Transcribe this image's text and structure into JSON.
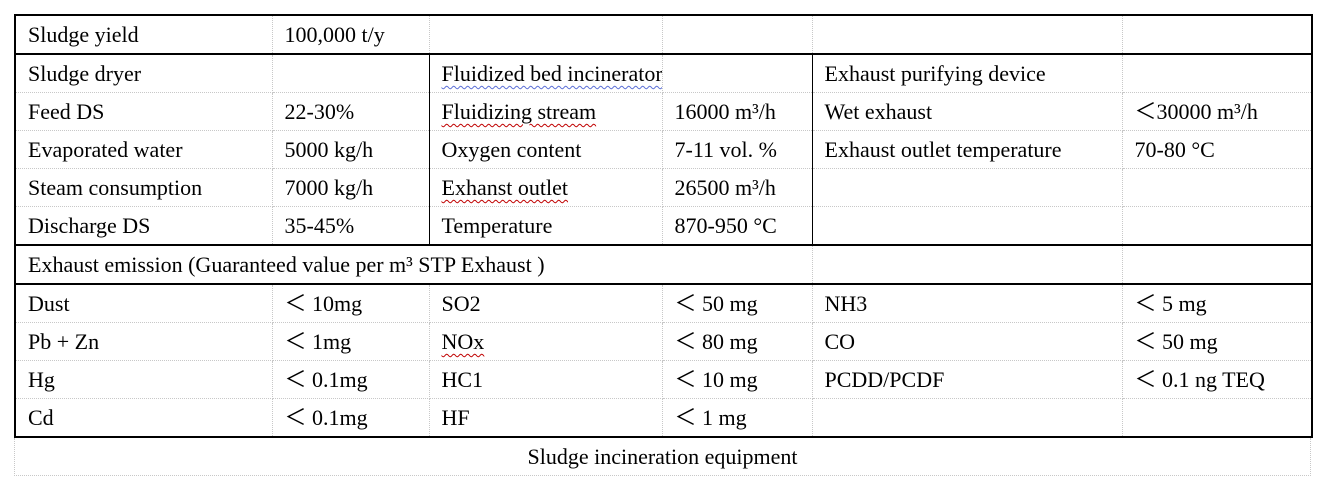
{
  "table": {
    "row1": {
      "label": "Sludge yield",
      "value": "100,000 t/y"
    },
    "headers": {
      "dryer": "Sludge dryer",
      "incinerator": "Fluidized bed incinerator",
      "purifier": "Exhaust purifying device"
    },
    "equipment_rows": [
      {
        "dryer_label": "Feed DS",
        "dryer_value": "22-30%",
        "inc_label": "Fluidizing stream",
        "inc_value": "16000 m³/h",
        "pur_label": "Wet exhaust",
        "pur_value": "＜30000 m³/h"
      },
      {
        "dryer_label": "Evaporated water",
        "dryer_value": "5000 kg/h",
        "inc_label": "Oxygen content",
        "inc_value": "7-11 vol. %",
        "pur_label": "Exhaust outlet temperature",
        "pur_value": "70-80 °C"
      },
      {
        "dryer_label": "Steam consumption",
        "dryer_value": "7000 kg/h",
        "inc_label": "Exhanst outlet",
        "inc_value": "26500 m³/h",
        "pur_label": "",
        "pur_value": ""
      },
      {
        "dryer_label": "Discharge DS",
        "dryer_value": "35-45%",
        "inc_label": "Temperature",
        "inc_value": "870-950 °C",
        "pur_label": "",
        "pur_value": ""
      }
    ],
    "emission_title": "Exhaust emission (Guaranteed value per m³ STP Exhaust )",
    "emission_rows": [
      {
        "a_label": "Dust",
        "a_value": "＜ 10mg",
        "b_label": "SO2",
        "b_value": "＜ 50 mg",
        "c_label": "NH3",
        "c_value": "＜ 5 mg"
      },
      {
        "a_label": "Pb + Zn",
        "a_value": "＜ 1mg",
        "b_label": "NOx",
        "b_value": "＜ 80 mg",
        "c_label": "CO",
        "c_value": "＜ 50 mg"
      },
      {
        "a_label": "Hg",
        "a_value": "＜ 0.1mg",
        "b_label": "HC1",
        "b_value": "＜ 10 mg",
        "c_label": "PCDD/PCDF",
        "c_value": "＜ 0.1 ng TEQ"
      },
      {
        "a_label": "Cd",
        "a_value": "＜ 0.1mg",
        "b_label": "HF",
        "b_value": "＜ 1 mg",
        "c_label": "",
        "c_value": ""
      }
    ]
  },
  "caption": "Sludge incineration equipment"
}
